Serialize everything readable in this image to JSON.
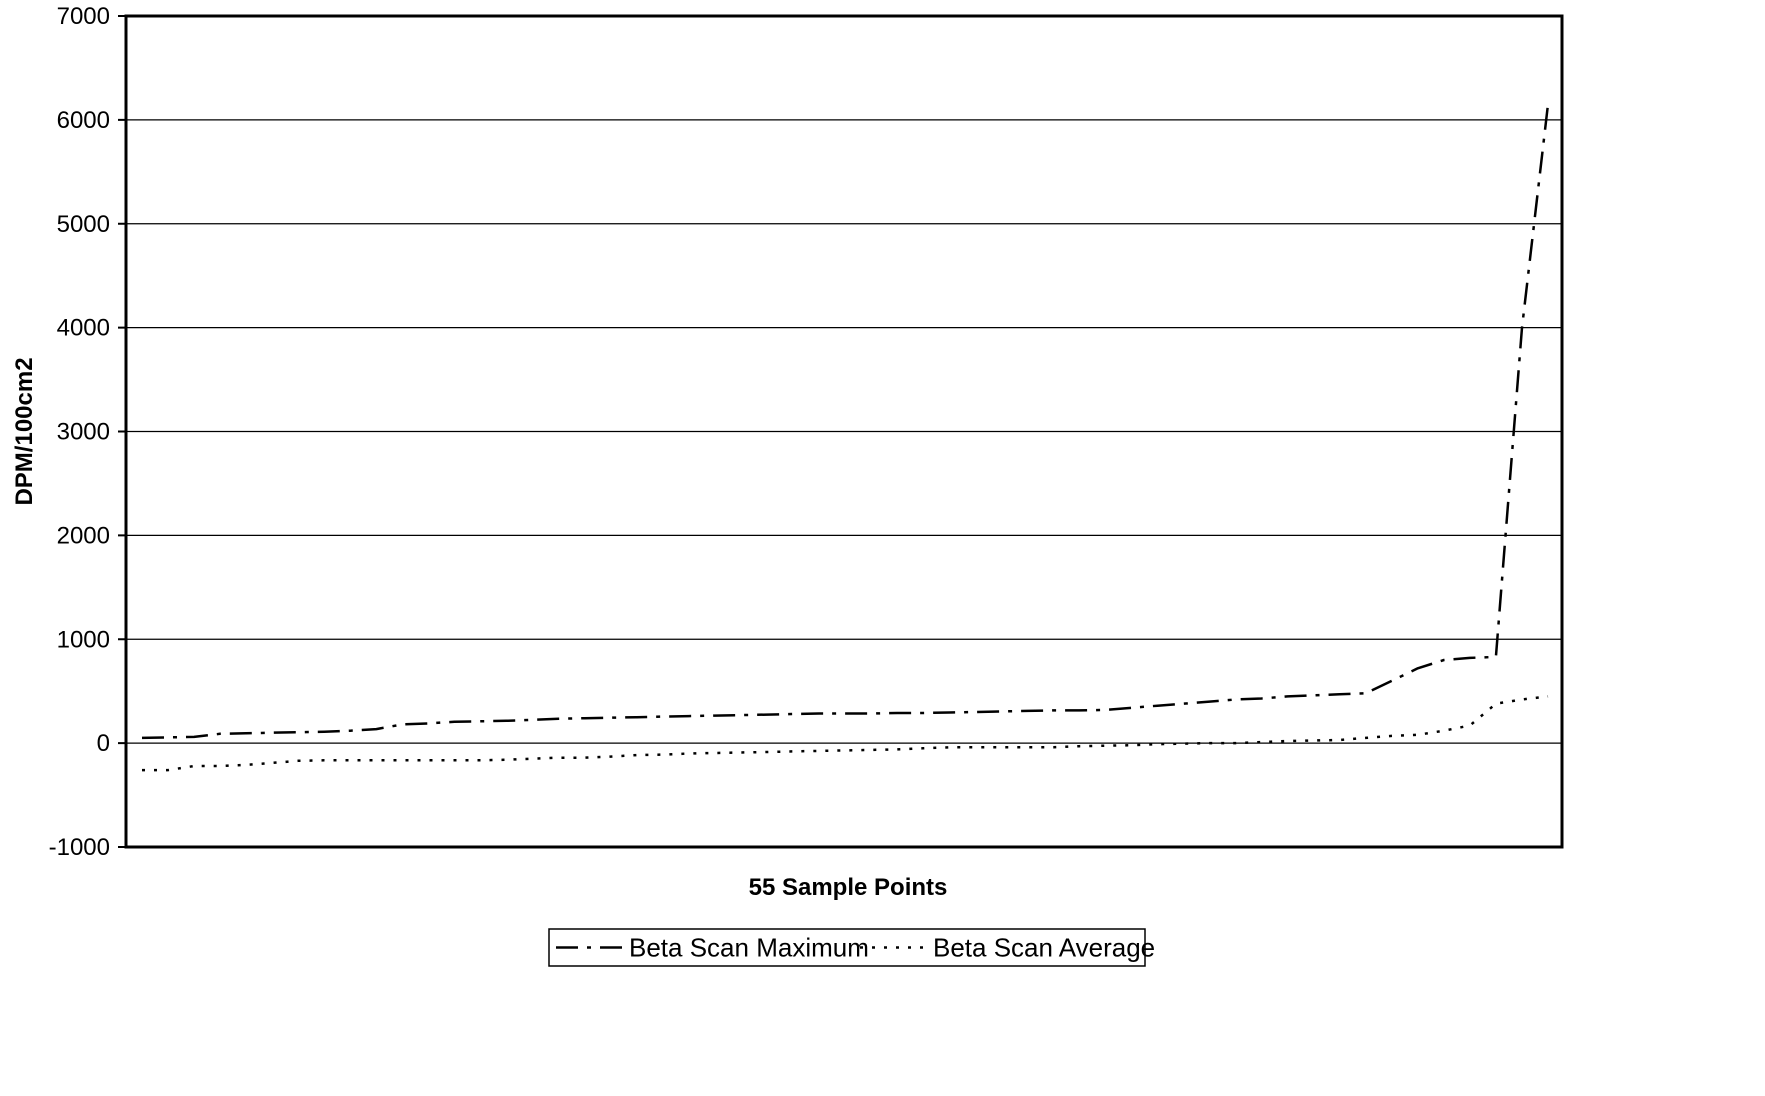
{
  "chart_data": {
    "type": "line",
    "xlabel": "55 Sample Points",
    "ylabel": "DPM/100cm2",
    "ylim": [
      -1000,
      7000
    ],
    "yticks": [
      -1000,
      0,
      1000,
      2000,
      3000,
      4000,
      5000,
      6000,
      7000
    ],
    "grid": true,
    "legend_position": "bottom-center",
    "x": [
      1,
      2,
      3,
      4,
      5,
      6,
      7,
      8,
      9,
      10,
      11,
      12,
      13,
      14,
      15,
      16,
      17,
      18,
      19,
      20,
      21,
      22,
      23,
      24,
      25,
      26,
      27,
      28,
      29,
      30,
      31,
      32,
      33,
      34,
      35,
      36,
      37,
      38,
      39,
      40,
      41,
      42,
      43,
      44,
      45,
      46,
      47,
      48,
      49,
      50,
      51,
      52,
      53,
      54,
      55
    ],
    "series": [
      {
        "name": "Beta Scan Maximum",
        "dash": "dash-dot",
        "values": [
          50,
          55,
          60,
          90,
          95,
          100,
          105,
          110,
          120,
          135,
          180,
          190,
          205,
          210,
          215,
          225,
          235,
          240,
          245,
          250,
          255,
          260,
          265,
          270,
          275,
          280,
          285,
          285,
          285,
          290,
          290,
          295,
          300,
          305,
          310,
          315,
          315,
          320,
          340,
          360,
          380,
          400,
          420,
          430,
          450,
          460,
          470,
          480,
          600,
          720,
          800,
          820,
          830,
          4000,
          6150
        ]
      },
      {
        "name": "Beta Scan Average",
        "dash": "dotted",
        "values": [
          -260,
          -260,
          -220,
          -220,
          -210,
          -190,
          -170,
          -165,
          -165,
          -165,
          -165,
          -165,
          -165,
          -165,
          -160,
          -150,
          -140,
          -140,
          -130,
          -115,
          -110,
          -100,
          -95,
          -90,
          -85,
          -80,
          -75,
          -70,
          -65,
          -60,
          -50,
          -40,
          -40,
          -40,
          -40,
          -40,
          -30,
          -25,
          -20,
          -10,
          -5,
          0,
          0,
          10,
          20,
          25,
          30,
          50,
          70,
          80,
          120,
          170,
          380,
          420,
          450
        ]
      }
    ]
  }
}
